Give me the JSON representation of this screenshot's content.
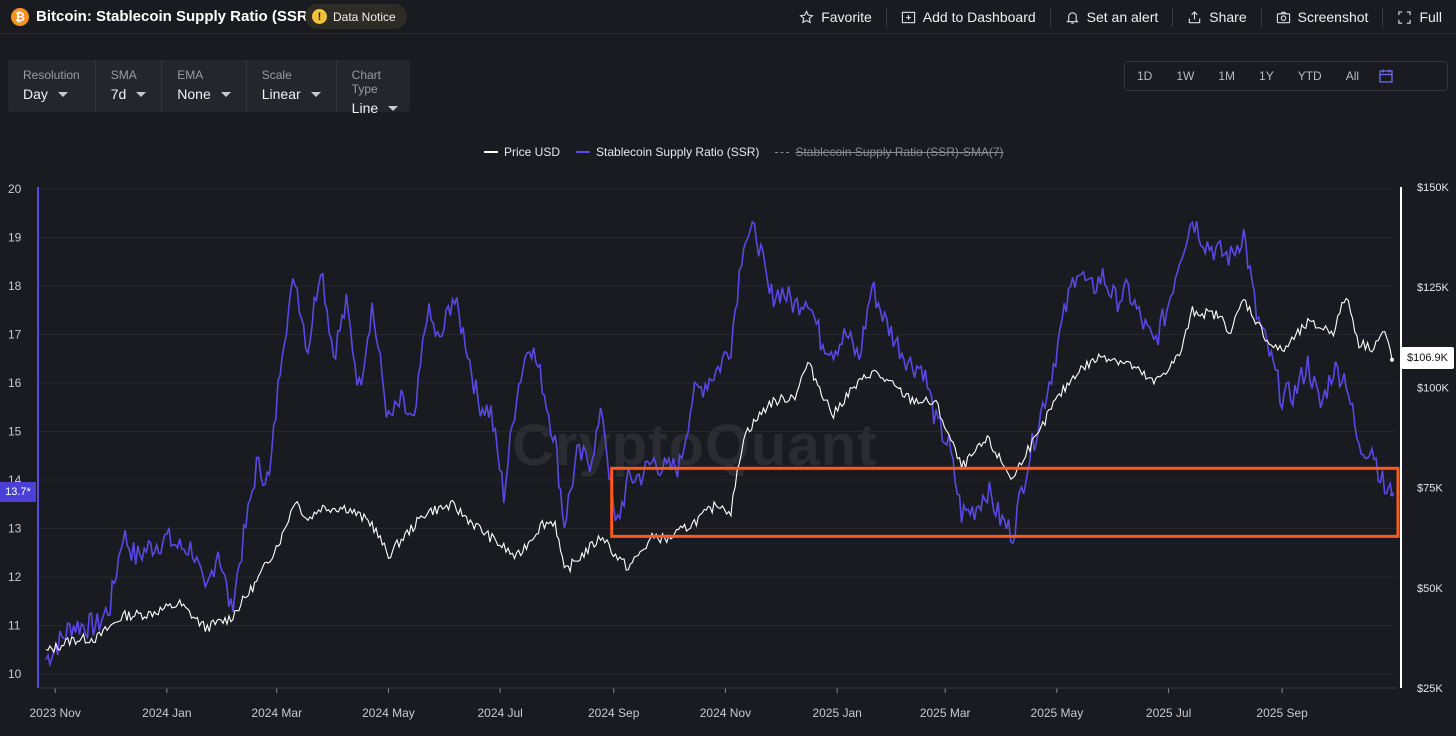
{
  "header": {
    "logo_glyph": "₿",
    "title": "Bitcoin: Stablecoin Supply Ratio (SSR)",
    "notice_label": "Data Notice",
    "notice_icon": "!",
    "actions": [
      {
        "label": "Favorite",
        "icon": "star-icon"
      },
      {
        "label": "Add to Dashboard",
        "icon": "add-dashboard-icon"
      },
      {
        "label": "Set an alert",
        "icon": "bell-icon"
      },
      {
        "label": "Share",
        "icon": "share-icon"
      },
      {
        "label": "Screenshot",
        "icon": "camera-icon"
      },
      {
        "label": "Full",
        "icon": "fullscreen-icon"
      }
    ]
  },
  "controls": [
    {
      "label": "Resolution",
      "value": "Day"
    },
    {
      "label": "SMA",
      "value": "7d"
    },
    {
      "label": "EMA",
      "value": "None"
    },
    {
      "label": "Scale",
      "value": "Linear"
    },
    {
      "label": "Chart Type",
      "value": "Line"
    }
  ],
  "ranges": [
    "1D",
    "1W",
    "1M",
    "1Y",
    "YTD",
    "All"
  ],
  "legend": {
    "price": "Price USD",
    "ssr": "Stablecoin Supply Ratio (SSR)",
    "sma": "Stablecoin Supply Ratio (SSR)-SMA(7)"
  },
  "tags": {
    "ssr_current": "13.7*",
    "price_current": "$106.9K"
  },
  "watermark": "CryptoQuant",
  "colors": {
    "background": "#1a1b20",
    "ssr_line": "#5a48e6",
    "price_line": "#ffffff",
    "highlight_box": "#ff5a1a",
    "axis_left": "#5a48e6"
  },
  "chart_data": {
    "type": "line",
    "title": "Bitcoin: Stablecoin Supply Ratio (SSR)",
    "x_tick_labels": [
      "2023 Nov",
      "2024 Jan",
      "2024 Mar",
      "2024 May",
      "2024 Jul",
      "2024 Sep",
      "2024 Nov",
      "2025 Jan",
      "2025 Mar",
      "2025 May",
      "2025 Jul",
      "2025 Sep"
    ],
    "y_left": {
      "ticks": [
        "10",
        "11",
        "12",
        "13",
        "14",
        "15",
        "16",
        "17",
        "18",
        "19",
        "20"
      ],
      "range": [
        10,
        20
      ]
    },
    "y_right": {
      "ticks": [
        "$25K",
        "$50K",
        "$75K",
        "$100K",
        "$125K",
        "$150K"
      ],
      "range": [
        25000,
        150000
      ]
    },
    "grid": true,
    "legend_position": "top-center",
    "x_range": [
      "2023-10-27",
      "2025-10-31"
    ],
    "series": [
      {
        "name": "Stablecoin Supply Ratio (SSR)",
        "axis": "left",
        "points": [
          [
            "2023-10-27",
            10.3
          ],
          [
            "2023-11-10",
            11.0
          ],
          [
            "2023-11-24",
            11.0
          ],
          [
            "2023-12-01",
            11.4
          ],
          [
            "2023-12-08",
            12.9
          ],
          [
            "2023-12-15",
            12.4
          ],
          [
            "2023-12-22",
            12.6
          ],
          [
            "2024-01-01",
            12.8
          ],
          [
            "2024-01-08",
            12.6
          ],
          [
            "2024-01-15",
            12.6
          ],
          [
            "2024-01-22",
            11.6
          ],
          [
            "2024-01-29",
            12.6
          ],
          [
            "2024-02-05",
            11.3
          ],
          [
            "2024-02-12",
            12.8
          ],
          [
            "2024-02-19",
            14.3
          ],
          [
            "2024-02-26",
            14.0
          ],
          [
            "2024-03-04",
            16.8
          ],
          [
            "2024-03-11",
            18.2
          ],
          [
            "2024-03-18",
            16.7
          ],
          [
            "2024-03-25",
            18.5
          ],
          [
            "2024-04-01",
            16.6
          ],
          [
            "2024-04-08",
            17.6
          ],
          [
            "2024-04-15",
            15.9
          ],
          [
            "2024-04-22",
            17.6
          ],
          [
            "2024-05-01",
            15.2
          ],
          [
            "2024-05-08",
            15.6
          ],
          [
            "2024-05-15",
            15.1
          ],
          [
            "2024-05-22",
            17.5
          ],
          [
            "2024-05-29",
            16.8
          ],
          [
            "2024-06-05",
            17.8
          ],
          [
            "2024-06-12",
            16.9
          ],
          [
            "2024-06-19",
            15.6
          ],
          [
            "2024-06-26",
            15.4
          ],
          [
            "2024-07-03",
            13.7
          ],
          [
            "2024-07-10",
            15.8
          ],
          [
            "2024-07-17",
            16.9
          ],
          [
            "2024-07-24",
            16.0
          ],
          [
            "2024-07-31",
            14.8
          ],
          [
            "2024-08-05",
            13.1
          ],
          [
            "2024-08-12",
            14.5
          ],
          [
            "2024-08-19",
            14.4
          ],
          [
            "2024-08-26",
            15.4
          ],
          [
            "2024-09-02",
            13.0
          ],
          [
            "2024-09-09",
            14.0
          ],
          [
            "2024-09-16",
            14.1
          ],
          [
            "2024-09-23",
            14.4
          ],
          [
            "2024-09-30",
            14.2
          ],
          [
            "2024-10-07",
            14.3
          ],
          [
            "2024-10-14",
            15.7
          ],
          [
            "2024-10-21",
            16.0
          ],
          [
            "2024-10-28",
            16.3
          ],
          [
            "2024-11-04",
            16.8
          ],
          [
            "2024-11-11",
            19.0
          ],
          [
            "2024-11-18",
            19.1
          ],
          [
            "2024-11-25",
            17.8
          ],
          [
            "2024-12-02",
            17.9
          ],
          [
            "2024-12-09",
            17.6
          ],
          [
            "2024-12-16",
            17.8
          ],
          [
            "2024-12-23",
            16.9
          ],
          [
            "2024-12-30",
            16.7
          ],
          [
            "2025-01-06",
            17.0
          ],
          [
            "2025-01-13",
            16.5
          ],
          [
            "2025-01-20",
            18.0
          ],
          [
            "2025-01-27",
            17.3
          ],
          [
            "2025-02-03",
            16.8
          ],
          [
            "2025-02-10",
            16.4
          ],
          [
            "2025-02-17",
            16.3
          ],
          [
            "2025-02-24",
            15.2
          ],
          [
            "2025-03-03",
            14.7
          ],
          [
            "2025-03-10",
            13.3
          ],
          [
            "2025-03-17",
            13.4
          ],
          [
            "2025-03-24",
            13.8
          ],
          [
            "2025-03-31",
            13.2
          ],
          [
            "2025-04-07",
            12.9
          ],
          [
            "2025-04-14",
            14.2
          ],
          [
            "2025-04-21",
            15.2
          ],
          [
            "2025-04-28",
            16.2
          ],
          [
            "2025-05-05",
            17.4
          ],
          [
            "2025-05-12",
            18.4
          ],
          [
            "2025-05-19",
            17.9
          ],
          [
            "2025-05-26",
            18.2
          ],
          [
            "2025-06-02",
            17.7
          ],
          [
            "2025-06-09",
            17.9
          ],
          [
            "2025-06-16",
            17.3
          ],
          [
            "2025-06-23",
            16.8
          ],
          [
            "2025-06-30",
            17.5
          ],
          [
            "2025-07-07",
            18.6
          ],
          [
            "2025-07-14",
            19.4
          ],
          [
            "2025-07-21",
            18.9
          ],
          [
            "2025-07-28",
            18.7
          ],
          [
            "2025-08-04",
            18.6
          ],
          [
            "2025-08-11",
            19.1
          ],
          [
            "2025-08-18",
            17.4
          ],
          [
            "2025-08-25",
            16.6
          ],
          [
            "2025-09-01",
            15.7
          ],
          [
            "2025-09-08",
            15.8
          ],
          [
            "2025-09-15",
            16.4
          ],
          [
            "2025-09-22",
            15.5
          ],
          [
            "2025-09-29",
            16.3
          ],
          [
            "2025-10-06",
            16.1
          ],
          [
            "2025-10-13",
            14.6
          ],
          [
            "2025-10-20",
            14.7
          ],
          [
            "2025-10-27",
            13.8
          ],
          [
            "2025-10-31",
            13.7
          ]
        ]
      },
      {
        "name": "Price USD",
        "axis": "right",
        "points": [
          [
            "2023-10-27",
            34000
          ],
          [
            "2023-11-10",
            37000
          ],
          [
            "2023-11-24",
            37500
          ],
          [
            "2023-12-08",
            43000
          ],
          [
            "2023-12-22",
            43500
          ],
          [
            "2024-01-08",
            46000
          ],
          [
            "2024-01-22",
            40000
          ],
          [
            "2024-02-05",
            42500
          ],
          [
            "2024-02-19",
            51500
          ],
          [
            "2024-03-04",
            63000
          ],
          [
            "2024-03-11",
            72000
          ],
          [
            "2024-03-18",
            67000
          ],
          [
            "2024-03-25",
            70000
          ],
          [
            "2024-04-08",
            70000
          ],
          [
            "2024-04-22",
            66000
          ],
          [
            "2024-05-01",
            58000
          ],
          [
            "2024-05-08",
            62000
          ],
          [
            "2024-05-22",
            69000
          ],
          [
            "2024-06-05",
            70500
          ],
          [
            "2024-06-19",
            65000
          ],
          [
            "2024-07-03",
            60000
          ],
          [
            "2024-07-10",
            57500
          ],
          [
            "2024-07-24",
            66000
          ],
          [
            "2024-07-31",
            66500
          ],
          [
            "2024-08-05",
            54000
          ],
          [
            "2024-08-19",
            60000
          ],
          [
            "2024-08-26",
            63000
          ],
          [
            "2024-09-02",
            58000
          ],
          [
            "2024-09-09",
            55000
          ],
          [
            "2024-09-23",
            63000
          ],
          [
            "2024-09-30",
            62000
          ],
          [
            "2024-10-14",
            66000
          ],
          [
            "2024-10-28",
            71000
          ],
          [
            "2024-11-04",
            69000
          ],
          [
            "2024-11-11",
            88000
          ],
          [
            "2024-11-25",
            96000
          ],
          [
            "2024-12-09",
            98000
          ],
          [
            "2024-12-16",
            106000
          ],
          [
            "2024-12-30",
            93000
          ],
          [
            "2025-01-06",
            98000
          ],
          [
            "2025-01-20",
            104000
          ],
          [
            "2025-01-27",
            102000
          ],
          [
            "2025-02-10",
            97000
          ],
          [
            "2025-02-24",
            96000
          ],
          [
            "2025-03-03",
            88000
          ],
          [
            "2025-03-10",
            80000
          ],
          [
            "2025-03-24",
            87000
          ],
          [
            "2025-04-07",
            77000
          ],
          [
            "2025-04-14",
            84000
          ],
          [
            "2025-04-21",
            88000
          ],
          [
            "2025-04-28",
            95000
          ],
          [
            "2025-05-12",
            104000
          ],
          [
            "2025-05-26",
            108000
          ],
          [
            "2025-06-09",
            106000
          ],
          [
            "2025-06-23",
            101000
          ],
          [
            "2025-07-07",
            108000
          ],
          [
            "2025-07-14",
            119000
          ],
          [
            "2025-07-28",
            118000
          ],
          [
            "2025-08-04",
            114000
          ],
          [
            "2025-08-11",
            122000
          ],
          [
            "2025-08-25",
            111000
          ],
          [
            "2025-09-01",
            109000
          ],
          [
            "2025-09-15",
            116000
          ],
          [
            "2025-09-29",
            114000
          ],
          [
            "2025-10-06",
            123000
          ],
          [
            "2025-10-13",
            111000
          ],
          [
            "2025-10-20",
            110000
          ],
          [
            "2025-10-27",
            114000
          ],
          [
            "2025-10-31",
            106900
          ]
        ]
      }
    ],
    "annotations": [
      {
        "type": "highlight_box",
        "x_start": "2024-09-01",
        "x_end": "2025-11-01",
        "y_start": 12.9,
        "y_end": 14.2
      }
    ]
  }
}
